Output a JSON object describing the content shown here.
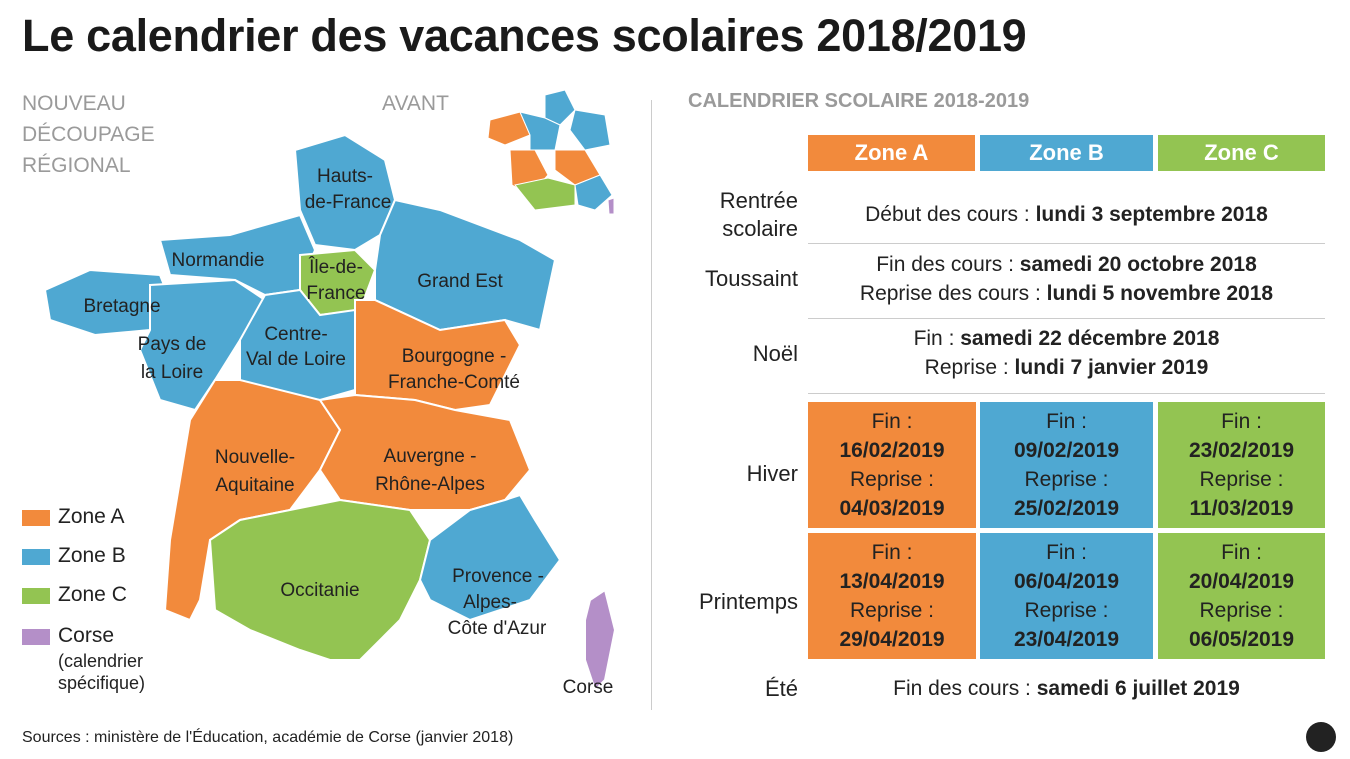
{
  "title": "Le calendrier des vacances scolaires 2018/2019",
  "map": {
    "subtitle_lines": [
      "NOUVEAU",
      "DÉCOUPAGE",
      "RÉGIONAL"
    ],
    "before_label": "AVANT",
    "regions": [
      {
        "lines": [
          "Hauts-",
          "de-France"
        ]
      },
      {
        "lines": [
          "Normandie"
        ]
      },
      {
        "lines": [
          "Île-de-",
          "France"
        ]
      },
      {
        "lines": [
          "Grand Est"
        ]
      },
      {
        "lines": [
          "Bretagne"
        ]
      },
      {
        "lines": [
          "Pays de",
          "la Loire"
        ]
      },
      {
        "lines": [
          "Centre-",
          "Val de Loire"
        ]
      },
      {
        "lines": [
          "Bourgogne -",
          "Franche-Comté"
        ]
      },
      {
        "lines": [
          "Nouvelle-",
          "Aquitaine"
        ]
      },
      {
        "lines": [
          "Auvergne -",
          "Rhône-Alpes"
        ]
      },
      {
        "lines": [
          "Occitanie"
        ]
      },
      {
        "lines": [
          "Provence -",
          "Alpes-",
          "Côte d'Azur"
        ]
      },
      {
        "lines": [
          "Corse"
        ]
      }
    ],
    "legend": [
      {
        "label": "Zone A"
      },
      {
        "label": "Zone B"
      },
      {
        "label": "Zone C"
      },
      {
        "label": "Corse",
        "note_lines": [
          "(calendrier",
          "spécifique)"
        ]
      }
    ]
  },
  "calendar": {
    "title": "CALENDRIER SCOLAIRE 2018-2019",
    "zones": [
      "Zone A",
      "Zone B",
      "Zone C"
    ],
    "rows": [
      {
        "label_lines": [
          "Rentrée",
          "scolaire"
        ],
        "lines": [
          {
            "label": "Début des cours :",
            "date": "lundi 3 septembre 2018"
          }
        ]
      },
      {
        "label_lines": [
          "Toussaint"
        ],
        "lines": [
          {
            "label": "Fin des cours :",
            "date": "samedi 20 octobre 2018"
          },
          {
            "label": "Reprise des cours :",
            "date": "lundi 5 novembre 2018"
          }
        ]
      },
      {
        "label_lines": [
          "Noël"
        ],
        "lines": [
          {
            "label": "Fin :",
            "date": "samedi 22 décembre 2018"
          },
          {
            "label": "Reprise :",
            "date": "lundi 7 janvier 2019"
          }
        ]
      },
      {
        "label_lines": [
          "Hiver"
        ],
        "zones": [
          {
            "end_label": "Fin :",
            "end": "16/02/2019",
            "resume_label": "Reprise :",
            "resume": "04/03/2019"
          },
          {
            "end_label": "Fin :",
            "end": "09/02/2019",
            "resume_label": "Reprise :",
            "resume": "25/02/2019"
          },
          {
            "end_label": "Fin :",
            "end": "23/02/2019",
            "resume_label": "Reprise :",
            "resume": "11/03/2019"
          }
        ]
      },
      {
        "label_lines": [
          "Printemps"
        ],
        "zones": [
          {
            "end_label": "Fin :",
            "end": "13/04/2019",
            "resume_label": "Reprise :",
            "resume": "29/04/2019"
          },
          {
            "end_label": "Fin :",
            "end": "06/04/2019",
            "resume_label": "Reprise :",
            "resume": "23/04/2019"
          },
          {
            "end_label": "Fin :",
            "end": "20/04/2019",
            "resume_label": "Reprise :",
            "resume": "06/05/2019"
          }
        ]
      },
      {
        "label_lines": [
          "Été"
        ],
        "lines": [
          {
            "label": "Fin des cours :",
            "date": "samedi 6 juillet 2019"
          }
        ]
      }
    ]
  },
  "source": "Sources : ministère de l'Éducation, académie de Corse (janvier 2018)"
}
